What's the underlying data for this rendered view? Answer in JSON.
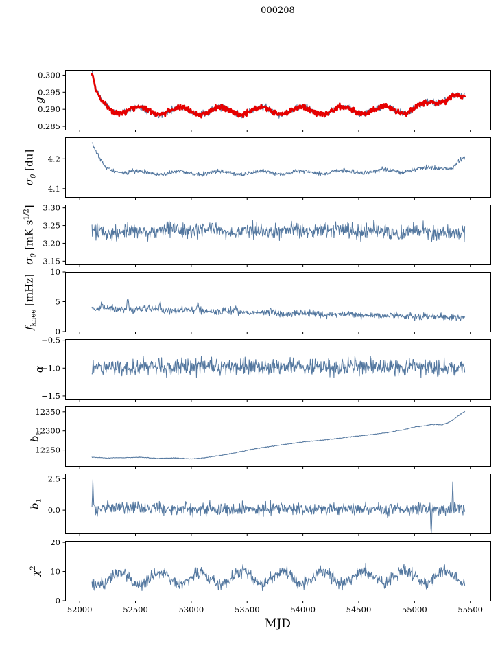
{
  "chart_data": {
    "type": "line",
    "title": "000208",
    "xlabel": "MJD",
    "xlim": [
      51870,
      55680
    ],
    "x_data_range": [
      52110,
      55450
    ],
    "xticks": [
      52000,
      52500,
      53000,
      53500,
      54000,
      54500,
      55000,
      55500
    ],
    "xtick_labels": [
      "52000",
      "52500",
      "53000",
      "53500",
      "54000",
      "54500",
      "55000",
      "55500"
    ],
    "grid": false,
    "legend": "none",
    "colors": {
      "line": "#53779f",
      "overlay": "#e60000",
      "axis": "#000000"
    },
    "panels": [
      {
        "name": "g",
        "ylabel_text": "g",
        "ylabel_parts": [
          {
            "t": "g",
            "i": true
          }
        ],
        "ylim": [
          0.284,
          0.3015
        ],
        "yticks": [
          0.285,
          0.29,
          0.295,
          0.3
        ],
        "ytick_labels": [
          "0.285",
          "0.290",
          "0.295",
          "0.300"
        ],
        "series": [
          {
            "name": "g-blue",
            "color": "#53779f",
            "width": 1.0,
            "seed": 11,
            "noise": 0.00048,
            "osc": {
              "period": 365,
              "amp": 0.0011,
              "phase": 52440
            },
            "trend": [
              [
                52110,
                0.3005
              ],
              [
                52140,
                0.2955
              ],
              [
                52200,
                0.2915
              ],
              [
                52300,
                0.2901
              ],
              [
                52500,
                0.2896
              ],
              [
                53300,
                0.2895
              ],
              [
                54300,
                0.2897
              ],
              [
                54900,
                0.2899
              ],
              [
                55080,
                0.2907
              ],
              [
                55200,
                0.2923
              ],
              [
                55320,
                0.2943
              ],
              [
                55380,
                0.2938
              ],
              [
                55450,
                0.2927
              ]
            ]
          },
          {
            "name": "g-red",
            "color": "#e60000",
            "width": 2.8,
            "seed": 12,
            "noise": 0.00038,
            "osc": {
              "period": 365,
              "amp": 0.0011,
              "phase": 52440
            },
            "trend": [
              [
                52110,
                0.3002
              ],
              [
                52140,
                0.2953
              ],
              [
                52200,
                0.2914
              ],
              [
                52300,
                0.2901
              ],
              [
                52500,
                0.2896
              ],
              [
                53300,
                0.2895
              ],
              [
                54300,
                0.2897
              ],
              [
                54900,
                0.2899
              ],
              [
                55080,
                0.2907
              ],
              [
                55200,
                0.2923
              ],
              [
                55320,
                0.2943
              ],
              [
                55380,
                0.2938
              ],
              [
                55450,
                0.2927
              ]
            ]
          }
        ]
      },
      {
        "name": "sigma0-du",
        "ylabel_text": "sigma0 [du]",
        "ylabel_parts": [
          {
            "t": "σ",
            "i": true
          },
          {
            "t": "0",
            "sub": true,
            "i": true
          },
          {
            "t": " [du]"
          }
        ],
        "ylim": [
          4.072,
          4.272
        ],
        "yticks": [
          4.1,
          4.2
        ],
        "ytick_labels": [
          "4.1",
          "4.2"
        ],
        "series": [
          {
            "name": "sigma0-du",
            "color": "#53779f",
            "width": 1.0,
            "seed": 21,
            "noise": 0.0035,
            "osc": {
              "period": 365,
              "amp": 0.0055,
              "phase": 52440
            },
            "trend": [
              [
                52110,
                4.252
              ],
              [
                52150,
                4.215
              ],
              [
                52230,
                4.17
              ],
              [
                52350,
                4.158
              ],
              [
                52600,
                4.153
              ],
              [
                53400,
                4.152
              ],
              [
                54300,
                4.156
              ],
              [
                54900,
                4.16
              ],
              [
                55100,
                4.165
              ],
              [
                55250,
                4.174
              ],
              [
                55330,
                4.168
              ],
              [
                55400,
                4.19
              ],
              [
                55450,
                4.202
              ]
            ]
          }
        ]
      },
      {
        "name": "sigma0-mks",
        "ylabel_text": "sigma0 [mK s^(1/2)]",
        "ylabel_parts": [
          {
            "t": "σ",
            "i": true
          },
          {
            "t": "0",
            "sub": true,
            "i": true
          },
          {
            "t": " [mK s"
          },
          {
            "t": "1/2",
            "sup": true
          },
          {
            "t": "]"
          }
        ],
        "ylim": [
          3.141,
          3.309
        ],
        "yticks": [
          3.15,
          3.2,
          3.25,
          3.3
        ],
        "ytick_labels": [
          "3.15",
          "3.20",
          "3.25",
          "3.30"
        ],
        "series": [
          {
            "name": "sigma0-mks",
            "color": "#53779f",
            "width": 1.0,
            "seed": 31,
            "noise": 0.011,
            "osc": {
              "period": 365,
              "amp": 0.0045,
              "phase": 52350
            },
            "trend": [
              [
                52110,
                3.231
              ],
              [
                52800,
                3.238
              ],
              [
                53500,
                3.233
              ],
              [
                54200,
                3.236
              ],
              [
                54900,
                3.233
              ],
              [
                55450,
                3.227
              ]
            ]
          }
        ]
      },
      {
        "name": "fknee",
        "ylabel_text": "f_knee [mHz]",
        "ylabel_parts": [
          {
            "t": "f",
            "i": true
          },
          {
            "t": "knee",
            "sub": true
          },
          {
            "t": " [mHz]"
          }
        ],
        "ylim": [
          0,
          10
        ],
        "yticks": [
          0,
          5,
          10
        ],
        "ytick_labels": [
          "0",
          "5",
          "10"
        ],
        "series": [
          {
            "name": "fknee",
            "color": "#53779f",
            "width": 1.0,
            "seed": 41,
            "noise": 0.3,
            "osc": {
              "period": 365,
              "amp": 0.12,
              "phase": 52500
            },
            "spikes": [
              {
                "x": 52430,
                "amp": 1.7,
                "w": 7
              },
              {
                "x": 52720,
                "amp": 1.5,
                "w": 6
              },
              {
                "x": 53060,
                "amp": 1.3,
                "w": 6
              },
              {
                "x": 52200,
                "amp": 0.9,
                "w": 5
              },
              {
                "x": 53400,
                "amp": 0.9,
                "w": 5
              }
            ],
            "trend": [
              [
                52110,
                3.85
              ],
              [
                52600,
                3.7
              ],
              [
                53200,
                3.4
              ],
              [
                53900,
                3.05
              ],
              [
                54600,
                2.75
              ],
              [
                55100,
                2.55
              ],
              [
                55450,
                2.45
              ]
            ]
          }
        ]
      },
      {
        "name": "alpha",
        "ylabel_text": "alpha",
        "ylabel_parts": [
          {
            "t": "α",
            "i": true
          }
        ],
        "ylim": [
          -1.55,
          -0.48
        ],
        "yticks": [
          -0.5,
          -1.0,
          -1.5
        ],
        "ytick_labels": [
          "−0.5",
          "−1.0",
          "−1.5"
        ],
        "series": [
          {
            "name": "alpha",
            "color": "#53779f",
            "width": 1.0,
            "seed": 51,
            "noise": 0.075,
            "trend": [
              [
                52110,
                -0.975
              ],
              [
                55450,
                -0.985
              ]
            ]
          }
        ]
      },
      {
        "name": "b0",
        "ylabel_text": "b0",
        "ylabel_parts": [
          {
            "t": "b",
            "i": true
          },
          {
            "t": "0",
            "sub": true
          }
        ],
        "ylim": [
          12208,
          12364
        ],
        "yticks": [
          12250,
          12300,
          12350
        ],
        "ytick_labels": [
          "12250",
          "12300",
          "12350"
        ],
        "series": [
          {
            "name": "b0",
            "color": "#53779f",
            "width": 1.0,
            "seed": 61,
            "noise": 0.5,
            "trend": [
              [
                52110,
                12231
              ],
              [
                52250,
                12229
              ],
              [
                52400,
                12230
              ],
              [
                52550,
                12231
              ],
              [
                52700,
                12228
              ],
              [
                52850,
                12229
              ],
              [
                53000,
                12227
              ],
              [
                53100,
                12229
              ],
              [
                53250,
                12235
              ],
              [
                53400,
                12243
              ],
              [
                53550,
                12252
              ],
              [
                53700,
                12259
              ],
              [
                53850,
                12265
              ],
              [
                54000,
                12271
              ],
              [
                54150,
                12275
              ],
              [
                54300,
                12280
              ],
              [
                54450,
                12285
              ],
              [
                54600,
                12290
              ],
              [
                54750,
                12295
              ],
              [
                54900,
                12303
              ],
              [
                55000,
                12310
              ],
              [
                55100,
                12314
              ],
              [
                55150,
                12317
              ],
              [
                55250,
                12316
              ],
              [
                55300,
                12321
              ],
              [
                55350,
                12330
              ],
              [
                55400,
                12341
              ],
              [
                55450,
                12351
              ]
            ]
          }
        ]
      },
      {
        "name": "b1",
        "ylabel_text": "b1",
        "ylabel_parts": [
          {
            "t": "b",
            "i": true
          },
          {
            "t": "1",
            "sub": true
          }
        ],
        "ylim": [
          -1.85,
          2.9
        ],
        "yticks": [
          0.0,
          2.5
        ],
        "ytick_labels": [
          "0.0",
          "2.5"
        ],
        "series": [
          {
            "name": "b1",
            "color": "#53779f",
            "width": 1.0,
            "seed": 71,
            "noise": 0.24,
            "spikes": [
              {
                "x": 52118,
                "amp": 2.4,
                "w": 3
              },
              {
                "x": 55342,
                "amp": 2.3,
                "w": 3
              },
              {
                "x": 55150,
                "amp": -1.5,
                "w": 4
              },
              {
                "x": 52160,
                "amp": -0.7,
                "w": 3
              },
              {
                "x": 54760,
                "amp": -0.55,
                "w": 3
              }
            ],
            "trend": [
              [
                52110,
                0.18
              ],
              [
                53000,
                0.12
              ],
              [
                55450,
                0.08
              ]
            ]
          }
        ]
      },
      {
        "name": "chi2",
        "ylabel_text": "chi^2",
        "ylabel_parts": [
          {
            "t": "χ",
            "i": true
          },
          {
            "t": "2",
            "sup": true
          }
        ],
        "ylim": [
          0,
          20.5
        ],
        "yticks": [
          0,
          10,
          20
        ],
        "ytick_labels": [
          "0",
          "10",
          "20"
        ],
        "series": [
          {
            "name": "chi2",
            "color": "#53779f",
            "width": 1.0,
            "seed": 81,
            "noise": 1.05,
            "osc": {
              "period": 365,
              "amp": 2.1,
              "phase": 52262
            },
            "trend": [
              [
                52110,
                7.4
              ],
              [
                53500,
                7.8
              ],
              [
                55450,
                8.2
              ]
            ]
          }
        ]
      }
    ]
  }
}
